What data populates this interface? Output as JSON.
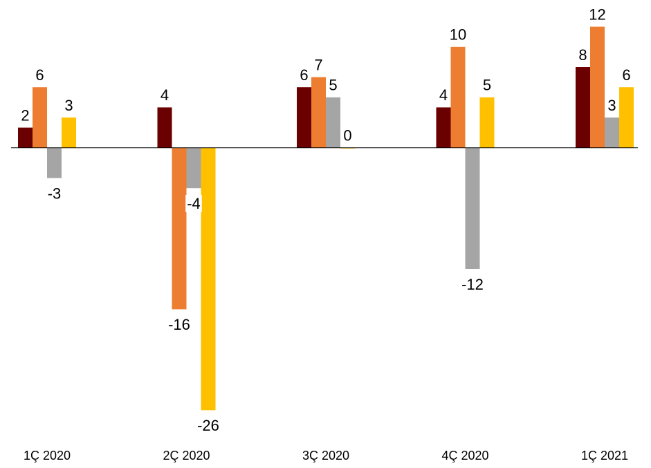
{
  "chart_data": {
    "type": "bar",
    "categories": [
      "1Ç 2020",
      "2Ç 2020",
      "3Ç 2020",
      "4Ç 2020",
      "1Ç 2021"
    ],
    "series": [
      {
        "color": "#6b0000",
        "values": [
          2,
          4,
          6,
          4,
          8
        ]
      },
      {
        "color": "#ed7d31",
        "values": [
          6,
          -16,
          7,
          10,
          12
        ]
      },
      {
        "color": "#a5a5a5",
        "values": [
          -3,
          -4,
          5,
          -12,
          3
        ]
      },
      {
        "color": "#ffc000",
        "values": [
          3,
          -26,
          0,
          5,
          6
        ]
      }
    ],
    "ylim": [
      -27,
      13
    ]
  }
}
